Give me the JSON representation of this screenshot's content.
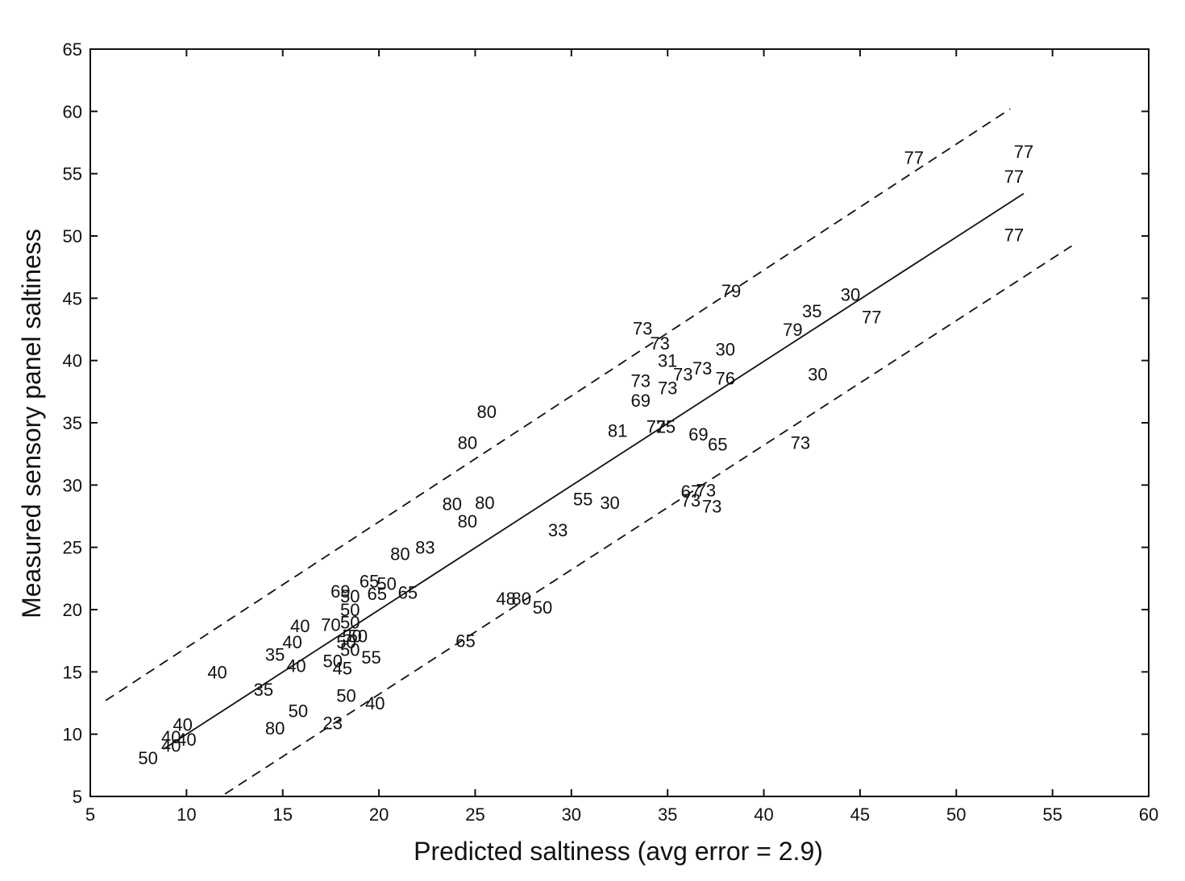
{
  "chart_data": {
    "type": "scatter",
    "title": "",
    "xlabel": "Predicted saltiness (avg error = 2.9)",
    "ylabel": "Measured sensory panel saltiness",
    "xlim": [
      5,
      60
    ],
    "ylim": [
      5,
      65
    ],
    "xticks": [
      5,
      10,
      15,
      20,
      25,
      30,
      35,
      40,
      45,
      50,
      55,
      60
    ],
    "yticks": [
      5,
      10,
      15,
      20,
      25,
      30,
      35,
      40,
      45,
      50,
      55,
      60,
      65
    ],
    "grid": false,
    "legend": "none",
    "marker": "text labels",
    "points": [
      {
        "x": 47.8,
        "y": 56.3,
        "label": "77"
      },
      {
        "x": 53.5,
        "y": 56.8,
        "label": "77"
      },
      {
        "x": 53.0,
        "y": 54.8,
        "label": "77"
      },
      {
        "x": 53.0,
        "y": 50.1,
        "label": "77"
      },
      {
        "x": 38.3,
        "y": 45.6,
        "label": "79"
      },
      {
        "x": 44.5,
        "y": 45.3,
        "label": "30"
      },
      {
        "x": 42.5,
        "y": 44.0,
        "label": "35"
      },
      {
        "x": 45.6,
        "y": 43.5,
        "label": "77"
      },
      {
        "x": 41.5,
        "y": 42.5,
        "label": "79"
      },
      {
        "x": 33.7,
        "y": 42.6,
        "label": "73"
      },
      {
        "x": 34.6,
        "y": 41.4,
        "label": "73"
      },
      {
        "x": 38.0,
        "y": 40.9,
        "label": "30"
      },
      {
        "x": 35.0,
        "y": 40.0,
        "label": "31"
      },
      {
        "x": 36.8,
        "y": 39.4,
        "label": "73"
      },
      {
        "x": 35.8,
        "y": 38.9,
        "label": "73"
      },
      {
        "x": 42.8,
        "y": 38.9,
        "label": "30"
      },
      {
        "x": 38.0,
        "y": 38.6,
        "label": "76"
      },
      {
        "x": 33.6,
        "y": 38.4,
        "label": "73"
      },
      {
        "x": 35.0,
        "y": 37.8,
        "label": "73"
      },
      {
        "x": 33.6,
        "y": 36.8,
        "label": "69"
      },
      {
        "x": 25.6,
        "y": 35.9,
        "label": "80"
      },
      {
        "x": 32.4,
        "y": 34.4,
        "label": "81"
      },
      {
        "x": 34.4,
        "y": 34.7,
        "label": "72"
      },
      {
        "x": 34.9,
        "y": 34.7,
        "label": "75"
      },
      {
        "x": 36.6,
        "y": 34.1,
        "label": "69"
      },
      {
        "x": 37.6,
        "y": 33.3,
        "label": "65"
      },
      {
        "x": 24.6,
        "y": 33.4,
        "label": "80"
      },
      {
        "x": 41.9,
        "y": 33.4,
        "label": "73"
      },
      {
        "x": 36.2,
        "y": 29.5,
        "label": "67"
      },
      {
        "x": 37.0,
        "y": 29.6,
        "label": "73"
      },
      {
        "x": 36.2,
        "y": 28.8,
        "label": "73"
      },
      {
        "x": 37.3,
        "y": 28.3,
        "label": "73"
      },
      {
        "x": 30.6,
        "y": 28.9,
        "label": "55"
      },
      {
        "x": 32.0,
        "y": 28.6,
        "label": "30"
      },
      {
        "x": 23.8,
        "y": 28.5,
        "label": "80"
      },
      {
        "x": 25.5,
        "y": 28.6,
        "label": "80"
      },
      {
        "x": 24.6,
        "y": 27.1,
        "label": "80"
      },
      {
        "x": 29.3,
        "y": 26.4,
        "label": "33"
      },
      {
        "x": 22.4,
        "y": 25.0,
        "label": "83"
      },
      {
        "x": 21.1,
        "y": 24.5,
        "label": "80"
      },
      {
        "x": 19.5,
        "y": 22.3,
        "label": "65"
      },
      {
        "x": 20.4,
        "y": 22.1,
        "label": "50"
      },
      {
        "x": 18.0,
        "y": 21.5,
        "label": "69"
      },
      {
        "x": 18.5,
        "y": 21.1,
        "label": "50"
      },
      {
        "x": 19.9,
        "y": 21.3,
        "label": "65"
      },
      {
        "x": 21.5,
        "y": 21.4,
        "label": "65"
      },
      {
        "x": 18.5,
        "y": 20.0,
        "label": "50"
      },
      {
        "x": 26.6,
        "y": 20.9,
        "label": "48"
      },
      {
        "x": 27.4,
        "y": 20.9,
        "label": "80"
      },
      {
        "x": 28.5,
        "y": 20.2,
        "label": "50"
      },
      {
        "x": 18.5,
        "y": 19.0,
        "label": "50"
      },
      {
        "x": 15.9,
        "y": 18.7,
        "label": "40"
      },
      {
        "x": 17.5,
        "y": 18.8,
        "label": "70"
      },
      {
        "x": 18.6,
        "y": 17.9,
        "label": "50"
      },
      {
        "x": 18.9,
        "y": 17.9,
        "label": "50"
      },
      {
        "x": 18.3,
        "y": 17.4,
        "label": "50"
      },
      {
        "x": 15.5,
        "y": 17.4,
        "label": "40"
      },
      {
        "x": 24.5,
        "y": 17.5,
        "label": "65"
      },
      {
        "x": 18.5,
        "y": 16.8,
        "label": "50"
      },
      {
        "x": 14.6,
        "y": 16.4,
        "label": "35"
      },
      {
        "x": 19.6,
        "y": 16.2,
        "label": "55"
      },
      {
        "x": 17.6,
        "y": 15.9,
        "label": "50"
      },
      {
        "x": 15.7,
        "y": 15.5,
        "label": "40"
      },
      {
        "x": 18.1,
        "y": 15.3,
        "label": "45"
      },
      {
        "x": 11.6,
        "y": 15.0,
        "label": "40"
      },
      {
        "x": 14.0,
        "y": 13.6,
        "label": "35"
      },
      {
        "x": 18.3,
        "y": 13.1,
        "label": "50"
      },
      {
        "x": 19.8,
        "y": 12.5,
        "label": "40"
      },
      {
        "x": 15.8,
        "y": 11.9,
        "label": "50"
      },
      {
        "x": 17.6,
        "y": 10.9,
        "label": "23"
      },
      {
        "x": 14.6,
        "y": 10.5,
        "label": "80"
      },
      {
        "x": 9.8,
        "y": 10.8,
        "label": "40"
      },
      {
        "x": 9.2,
        "y": 9.8,
        "label": "40"
      },
      {
        "x": 10.0,
        "y": 9.6,
        "label": "40"
      },
      {
        "x": 9.2,
        "y": 9.1,
        "label": "40"
      },
      {
        "x": 8.0,
        "y": 8.1,
        "label": "50"
      }
    ],
    "lines": [
      {
        "style": "solid",
        "from": [
          8.8,
          8.8
        ],
        "to": [
          53.5,
          53.4
        ]
      },
      {
        "style": "dashed",
        "from": [
          5.8,
          12.7
        ],
        "to": [
          52.8,
          60.2
        ]
      },
      {
        "style": "dashed",
        "from": [
          12.0,
          5.2
        ],
        "to": [
          56.0,
          49.2
        ]
      }
    ]
  }
}
